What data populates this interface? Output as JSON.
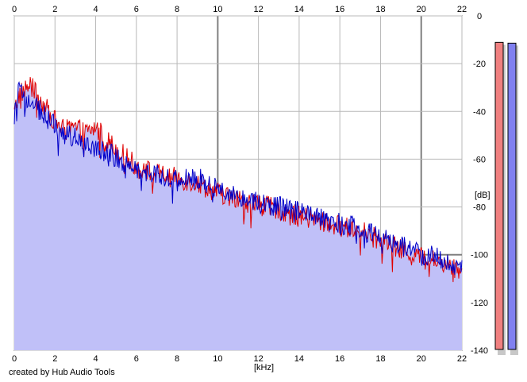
{
  "credit": "created by Hub Audio Tools",
  "chart_data": {
    "type": "area",
    "xunit": "[kHz]",
    "yunit": "[dB]",
    "xlim": [
      0,
      22
    ],
    "ylim": [
      -140,
      0
    ],
    "x_ticks": [
      "0",
      "2",
      "4",
      "6",
      "8",
      "10",
      "12",
      "14",
      "16",
      "18",
      "20",
      "22"
    ],
    "y_ticks": [
      "0",
      "-20",
      "-40",
      "-60",
      "-80",
      "-100",
      "-120",
      "-140"
    ],
    "grid": true,
    "colors": {
      "red": "#e00000",
      "blue": "#0000c8",
      "fill": "#c0c0f8",
      "meter_red": "#f08080",
      "meter_blue": "#8080f0"
    },
    "series": [
      {
        "color": "red",
        "points": [
          [
            0.0,
            -41
          ],
          [
            0.2,
            -33
          ],
          [
            0.5,
            -31
          ],
          [
            0.8,
            -29
          ],
          [
            1.0,
            -32
          ],
          [
            1.5,
            -38
          ],
          [
            2.0,
            -44
          ],
          [
            2.5,
            -48
          ],
          [
            3.0,
            -47
          ],
          [
            3.5,
            -49
          ],
          [
            4.0,
            -47
          ],
          [
            4.5,
            -51
          ],
          [
            5.0,
            -56
          ],
          [
            5.5,
            -59
          ],
          [
            6.0,
            -63
          ],
          [
            7.0,
            -66
          ],
          [
            8.0,
            -68
          ],
          [
            9.0,
            -70
          ],
          [
            10.0,
            -74
          ],
          [
            11.0,
            -77
          ],
          [
            12.0,
            -79
          ],
          [
            13.0,
            -81
          ],
          [
            14.0,
            -84
          ],
          [
            15.0,
            -86
          ],
          [
            16.0,
            -88
          ],
          [
            17.0,
            -90
          ],
          [
            18.0,
            -94
          ],
          [
            19.0,
            -98
          ],
          [
            20.0,
            -101
          ],
          [
            21.0,
            -103
          ],
          [
            22.0,
            -107
          ]
        ]
      },
      {
        "color": "blue",
        "points": [
          [
            0.0,
            -41
          ],
          [
            0.2,
            -32
          ],
          [
            0.5,
            -34
          ],
          [
            0.8,
            -36
          ],
          [
            1.0,
            -37
          ],
          [
            1.5,
            -42
          ],
          [
            2.0,
            -46
          ],
          [
            2.5,
            -50
          ],
          [
            3.0,
            -51
          ],
          [
            3.5,
            -52
          ],
          [
            4.0,
            -55
          ],
          [
            4.5,
            -57
          ],
          [
            5.0,
            -59
          ],
          [
            5.5,
            -62
          ],
          [
            6.0,
            -64
          ],
          [
            7.0,
            -66
          ],
          [
            8.0,
            -69
          ],
          [
            9.0,
            -68
          ],
          [
            10.0,
            -72
          ],
          [
            11.0,
            -75
          ],
          [
            12.0,
            -78
          ],
          [
            13.0,
            -80
          ],
          [
            14.0,
            -82
          ],
          [
            15.0,
            -85
          ],
          [
            16.0,
            -87
          ],
          [
            17.0,
            -89
          ],
          [
            18.0,
            -93
          ],
          [
            19.0,
            -96
          ],
          [
            20.0,
            -99
          ],
          [
            21.0,
            -102
          ],
          [
            22.0,
            -106
          ]
        ]
      }
    ],
    "meters": [
      {
        "color": "red",
        "peak_db": -10
      },
      {
        "color": "blue",
        "peak_db": -13
      }
    ]
  }
}
